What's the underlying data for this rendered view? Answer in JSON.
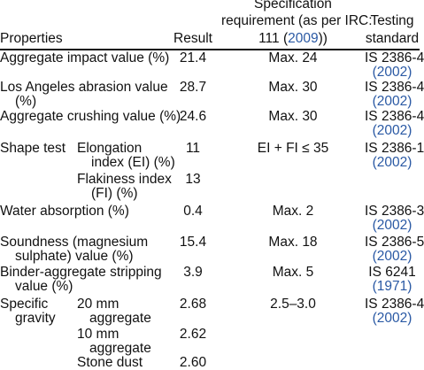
{
  "header": {
    "properties": "Properties",
    "result": "Result",
    "spec_line1": "Specification",
    "spec_line2": "requirement (as per IRC:",
    "spec_line3_prefix": "111 (",
    "spec_line3_year": "2009",
    "spec_line3_suffix": "))",
    "std_line1": "Testing",
    "std_line2": "standard"
  },
  "rows": [
    {
      "property": "Aggregate impact value (%)",
      "result": "21.4",
      "spec": "Max. 24",
      "standard": "IS 2386-4",
      "year": "(2002)"
    },
    {
      "property_line1": "Los Angeles abrasion value",
      "property_line2": "(%)",
      "result": "28.7",
      "spec": "Max. 30",
      "standard": "IS 2386-4",
      "year": "(2002)"
    },
    {
      "property": "Aggregate crushing value (%)",
      "result": "24.6",
      "spec": "Max. 30",
      "standard": "IS 2386-4",
      "year": "(2002)"
    },
    {
      "property": "Shape test",
      "sub1_line1": "Elongation",
      "sub1_line2": "index (EI) (%)",
      "sub1_result": "11",
      "sub2_line1": "Flakiness index",
      "sub2_line2": "(FI) (%)",
      "sub2_result": "13",
      "spec": "EI + FI ≤ 35",
      "standard": "IS 2386-1",
      "year": "(2002)"
    },
    {
      "property": "Water absorption (%)",
      "result": "0.4",
      "spec": "Max. 2",
      "standard": "IS 2386-3",
      "year": "(2002)"
    },
    {
      "property_line1": "Soundness (magnesium",
      "property_line2": "sulphate) value (%)",
      "result": "15.4",
      "spec": "Max. 18",
      "standard": "IS 2386-5",
      "year": "(2002)"
    },
    {
      "property_line1": "Binder-aggregate stripping",
      "property_line2": "value (%)",
      "result": "3.9",
      "spec": "Max. 5",
      "standard": "IS 6241",
      "year": "(1971)"
    },
    {
      "property_line1": "Specific",
      "property_line2": "gravity",
      "sub1_line1": "20 mm",
      "sub1_line2": "aggregate",
      "sub1_result": "2.68",
      "sub2_line1": "10 mm",
      "sub2_line2": "aggregate",
      "sub2_result": "2.62",
      "sub3_line1": "Stone dust",
      "sub3_result": "2.60",
      "spec": "2.5–3.0",
      "standard": "IS 2386-4",
      "year": "(2002)"
    }
  ]
}
